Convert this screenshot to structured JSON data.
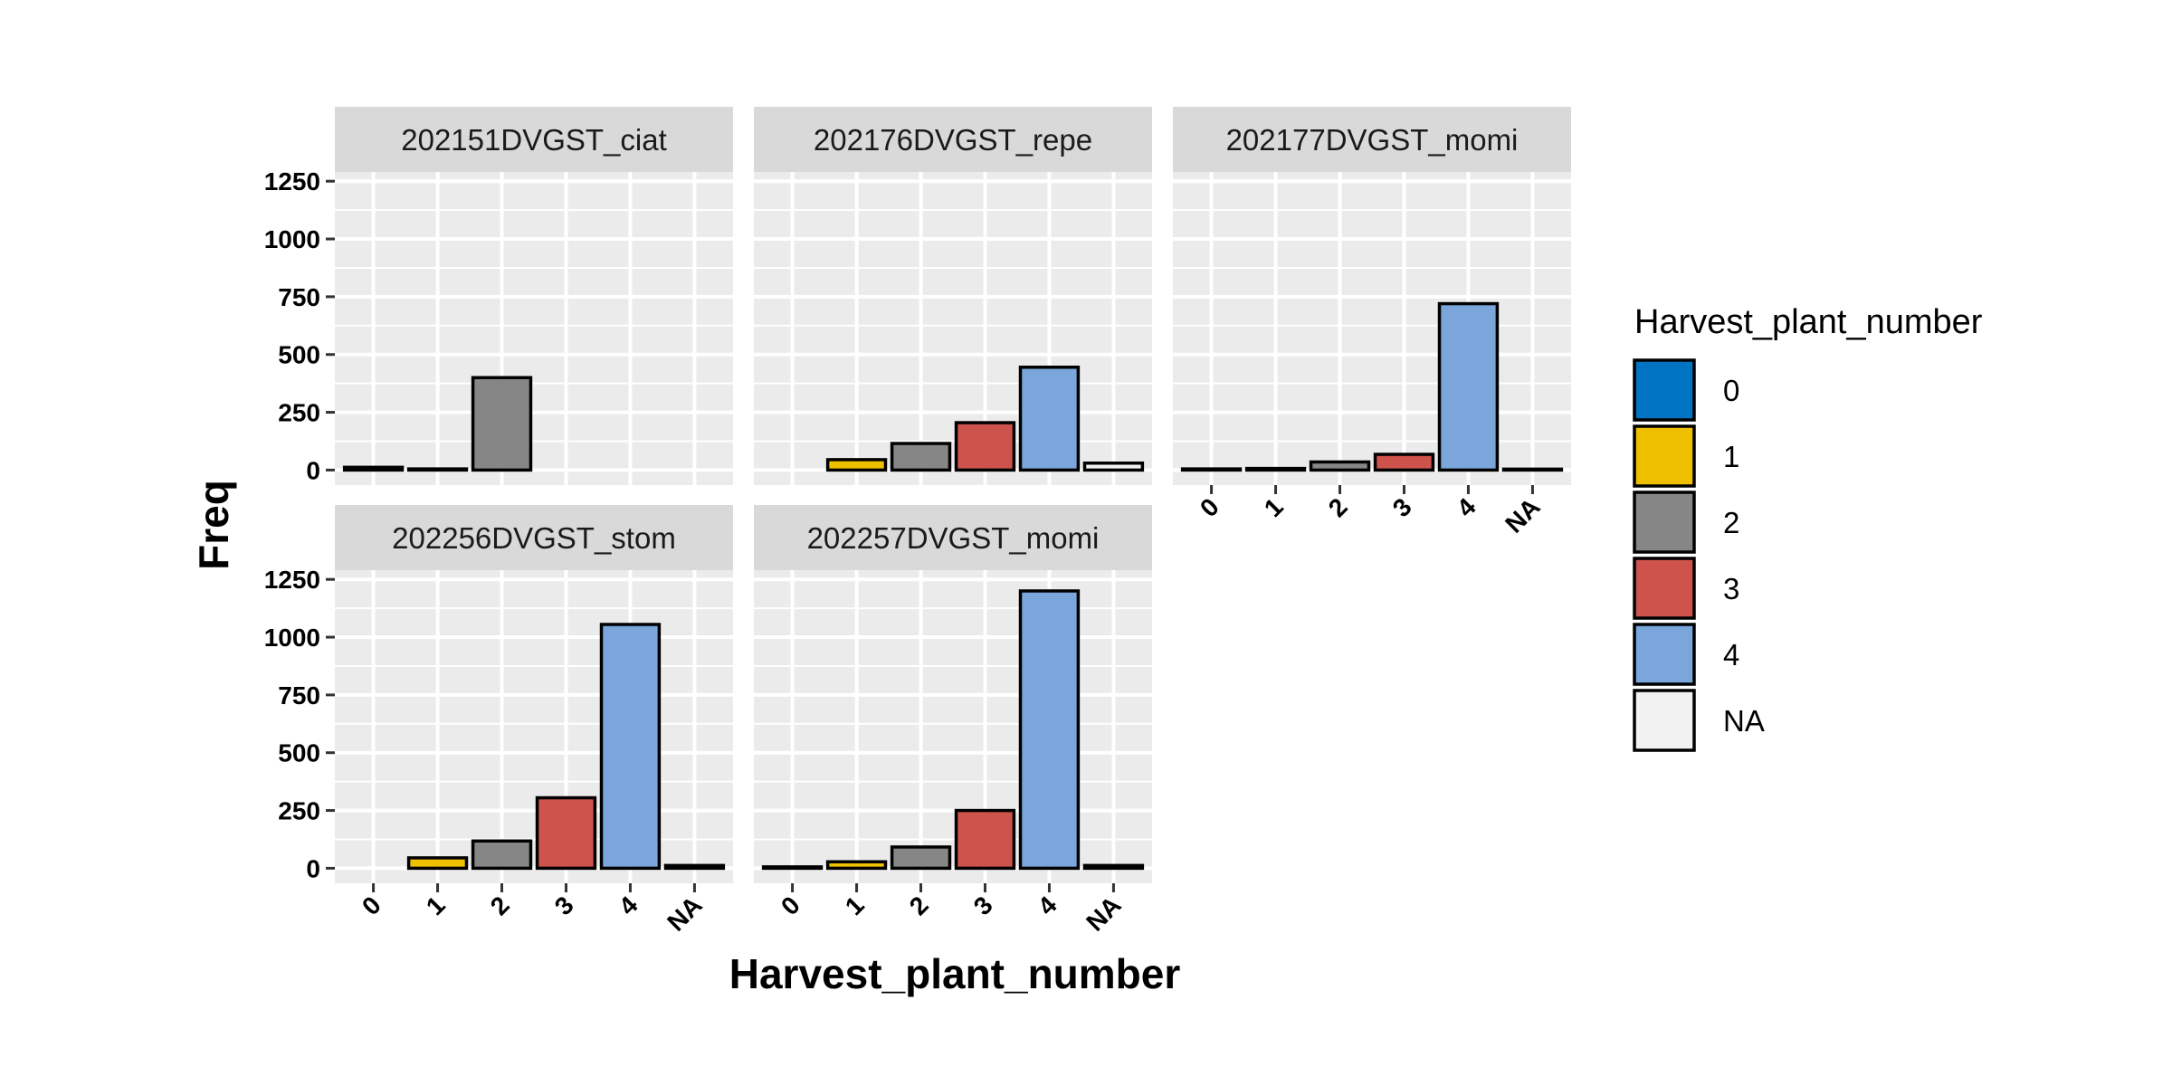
{
  "chart_data": {
    "type": "bar",
    "facet_layout": "wrap",
    "xlabel": "Harvest_plant_number",
    "ylabel": "Freq",
    "ylim": [
      0,
      1250
    ],
    "y_ticks": [
      0,
      250,
      500,
      750,
      1000,
      1250
    ],
    "categories": [
      "0",
      "1",
      "2",
      "3",
      "4",
      "NA"
    ],
    "colors": {
      "0": "#0073c2",
      "1": "#efc000",
      "2": "#868686",
      "3": "#cd534c",
      "4": "#7aa6dc",
      "NA": "#f2f2f2"
    },
    "legend": {
      "title": "Harvest_plant_number",
      "position": "right",
      "entries": [
        "0",
        "1",
        "2",
        "3",
        "4",
        "NA"
      ]
    },
    "panels": [
      {
        "name": "202151DVGST_ciat",
        "bars": [
          {
            "category": "0",
            "value": 12
          },
          {
            "category": "1",
            "value": 5
          },
          {
            "category": "2",
            "value": 400
          }
        ]
      },
      {
        "name": "202176DVGST_repe",
        "bars": [
          {
            "category": "1",
            "value": 45
          },
          {
            "category": "2",
            "value": 115
          },
          {
            "category": "3",
            "value": 205
          },
          {
            "category": "4",
            "value": 445
          },
          {
            "category": "NA",
            "value": 30
          }
        ]
      },
      {
        "name": "202177DVGST_momi",
        "bars": [
          {
            "category": "0",
            "value": 5
          },
          {
            "category": "1",
            "value": 7
          },
          {
            "category": "2",
            "value": 35
          },
          {
            "category": "3",
            "value": 68
          },
          {
            "category": "4",
            "value": 720
          },
          {
            "category": "NA",
            "value": 4
          }
        ]
      },
      {
        "name": "202256DVGST_stom",
        "bars": [
          {
            "category": "1",
            "value": 45
          },
          {
            "category": "2",
            "value": 118
          },
          {
            "category": "3",
            "value": 305
          },
          {
            "category": "4",
            "value": 1055
          },
          {
            "category": "NA",
            "value": 12
          }
        ]
      },
      {
        "name": "202257DVGST_momi",
        "bars": [
          {
            "category": "0",
            "value": 6
          },
          {
            "category": "1",
            "value": 28
          },
          {
            "category": "2",
            "value": 92
          },
          {
            "category": "3",
            "value": 250
          },
          {
            "category": "4",
            "value": 1200
          },
          {
            "category": "NA",
            "value": 12
          }
        ]
      }
    ]
  }
}
